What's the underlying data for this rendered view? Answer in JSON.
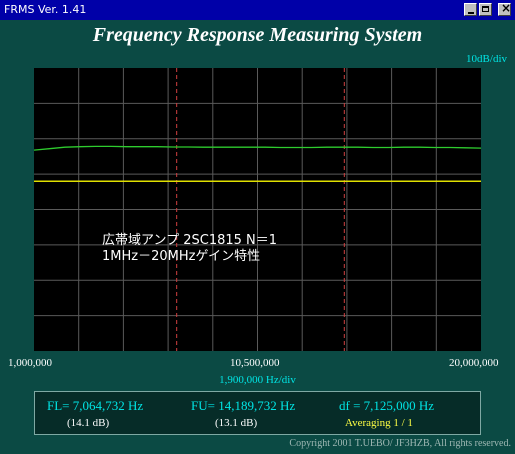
{
  "window": {
    "title": "FRMS   Ver. 1.41"
  },
  "header": {
    "title": "Frequency Response Measuring System",
    "y_scale": "10dB/div"
  },
  "graph": {
    "annotation_line1": "広帯域アンプ  2SC1815  N＝1",
    "annotation_line2": "1MHz－20MHzゲイン特性",
    "x_min_label": "1,000,000",
    "x_mid_label": "10,500,000",
    "x_max_label": "20,000,000",
    "x_scale": "1,900,000  Hz/div",
    "colors": {
      "trace": "#2ecc2e",
      "reference": "#e0e000",
      "marker": "#d04040",
      "grid": "#5a5a5a"
    },
    "x_range": [
      1000000,
      20000000
    ],
    "markers": [
      {
        "name": "FL",
        "frequency": 7064732
      },
      {
        "name": "FU",
        "frequency": 14189732
      }
    ],
    "reference_level_fraction": 0.4,
    "trace_level_fraction": [
      0.29,
      0.285,
      0.28,
      0.278,
      0.277,
      0.277,
      0.278,
      0.278,
      0.278,
      0.279,
      0.279,
      0.28,
      0.28,
      0.28,
      0.28,
      0.28,
      0.281,
      0.281,
      0.281,
      0.28,
      0.28,
      0.28,
      0.281,
      0.281,
      0.28,
      0.28,
      0.281,
      0.281,
      0.282,
      0.283
    ]
  },
  "readout": {
    "fl": "FL= 7,064,732  Hz",
    "fl_db": "(14.1 dB)",
    "fu": "FU= 14,189,732  Hz",
    "fu_db": "(13.1 dB)",
    "df": "df = 7,125,000  Hz",
    "averaging": "Averaging   1 / 1"
  },
  "footer": {
    "copyright": "Copyright 2001 T.UEBO/ JF3HZB, All rights reserved."
  }
}
